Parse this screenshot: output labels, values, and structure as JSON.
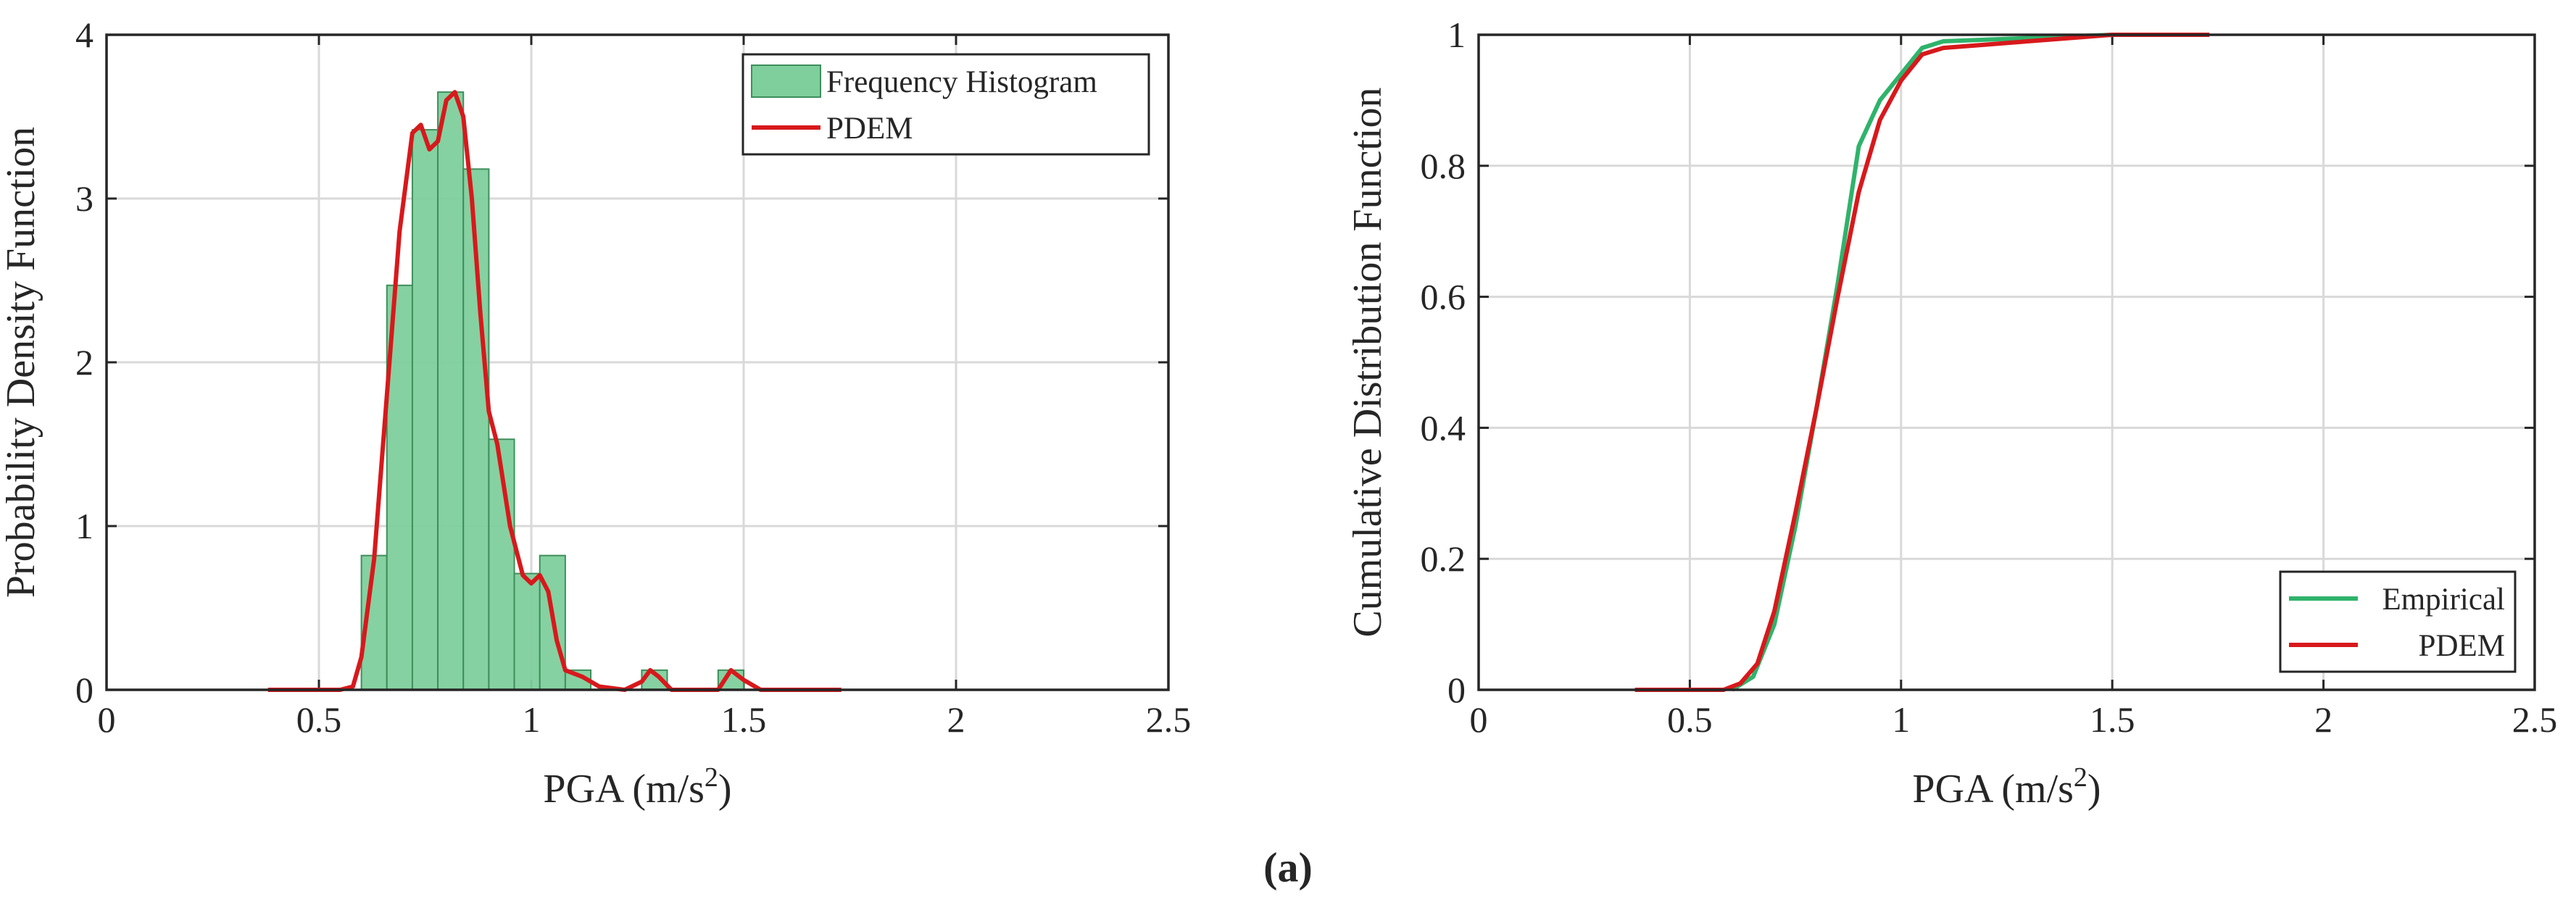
{
  "chart_data": [
    {
      "type": "histogram",
      "x_label": [
        "PGA (m/s",
        "2",
        ")"
      ],
      "y_label": "Probability Density Function",
      "xlim": [
        0,
        2.5
      ],
      "xticks": [
        0,
        0.5,
        1,
        1.5,
        2,
        2.5
      ],
      "ylim": [
        0,
        4
      ],
      "yticks": [
        0,
        1,
        2,
        3,
        4
      ],
      "grid": true,
      "legend": "upper right",
      "histogram": {
        "name": "Frequency Histogram",
        "color": "#7fcf9c",
        "bins": [
          0.6,
          0.66,
          0.72,
          0.78,
          0.84,
          0.9,
          0.96,
          1.02,
          1.08,
          1.14,
          1.2,
          1.26,
          1.32,
          1.38,
          1.44,
          1.5
        ],
        "values": [
          0.82,
          2.47,
          3.42,
          3.65,
          3.18,
          1.53,
          0.71,
          0.82,
          0.12,
          0,
          0,
          0.12,
          0,
          0,
          0.12
        ]
      },
      "series": [
        {
          "name": "PDEM",
          "color": "#d7191c",
          "x": [
            0.38,
            0.55,
            0.58,
            0.6,
            0.63,
            0.66,
            0.69,
            0.72,
            0.74,
            0.76,
            0.78,
            0.8,
            0.82,
            0.84,
            0.86,
            0.88,
            0.9,
            0.92,
            0.95,
            0.98,
            1.0,
            1.02,
            1.04,
            1.06,
            1.08,
            1.12,
            1.16,
            1.22,
            1.26,
            1.28,
            1.3,
            1.33,
            1.44,
            1.47,
            1.5,
            1.54,
            1.73
          ],
          "values": [
            0,
            0,
            0.02,
            0.2,
            0.8,
            1.8,
            2.8,
            3.4,
            3.45,
            3.3,
            3.35,
            3.6,
            3.65,
            3.5,
            3.0,
            2.3,
            1.7,
            1.5,
            1.0,
            0.7,
            0.65,
            0.7,
            0.6,
            0.3,
            0.12,
            0.08,
            0.02,
            0,
            0.05,
            0.12,
            0.08,
            0,
            0,
            0.12,
            0.06,
            0,
            0
          ]
        }
      ]
    },
    {
      "type": "line",
      "x_label": [
        "PGA (m/s",
        "2",
        ")"
      ],
      "y_label": "Cumulative Distribution Function",
      "xlim": [
        0,
        2.5
      ],
      "xticks": [
        0,
        0.5,
        1,
        1.5,
        2,
        2.5
      ],
      "ylim": [
        0,
        1
      ],
      "yticks": [
        0,
        0.2,
        0.4,
        0.6,
        0.8,
        1
      ],
      "grid": true,
      "legend": "lower right",
      "series": [
        {
          "name": "Empirical",
          "color": "#2fb36b",
          "x": [
            0.6,
            0.65,
            0.7,
            0.75,
            0.8,
            0.85,
            0.9,
            0.95,
            1.0,
            1.05,
            1.1,
            1.3,
            1.5
          ],
          "values": [
            0,
            0.02,
            0.1,
            0.25,
            0.43,
            0.62,
            0.83,
            0.9,
            0.94,
            0.98,
            0.99,
            0.995,
            1
          ]
        },
        {
          "name": "PDEM",
          "color": "#d7191c",
          "x": [
            0.37,
            0.58,
            0.62,
            0.66,
            0.7,
            0.75,
            0.8,
            0.85,
            0.9,
            0.95,
            1.0,
            1.05,
            1.1,
            1.2,
            1.3,
            1.4,
            1.5,
            1.73
          ],
          "values": [
            0,
            0,
            0.01,
            0.04,
            0.12,
            0.27,
            0.43,
            0.6,
            0.76,
            0.87,
            0.93,
            0.97,
            0.98,
            0.985,
            0.99,
            0.995,
            1,
            1
          ]
        }
      ]
    }
  ],
  "caption": "(a)"
}
